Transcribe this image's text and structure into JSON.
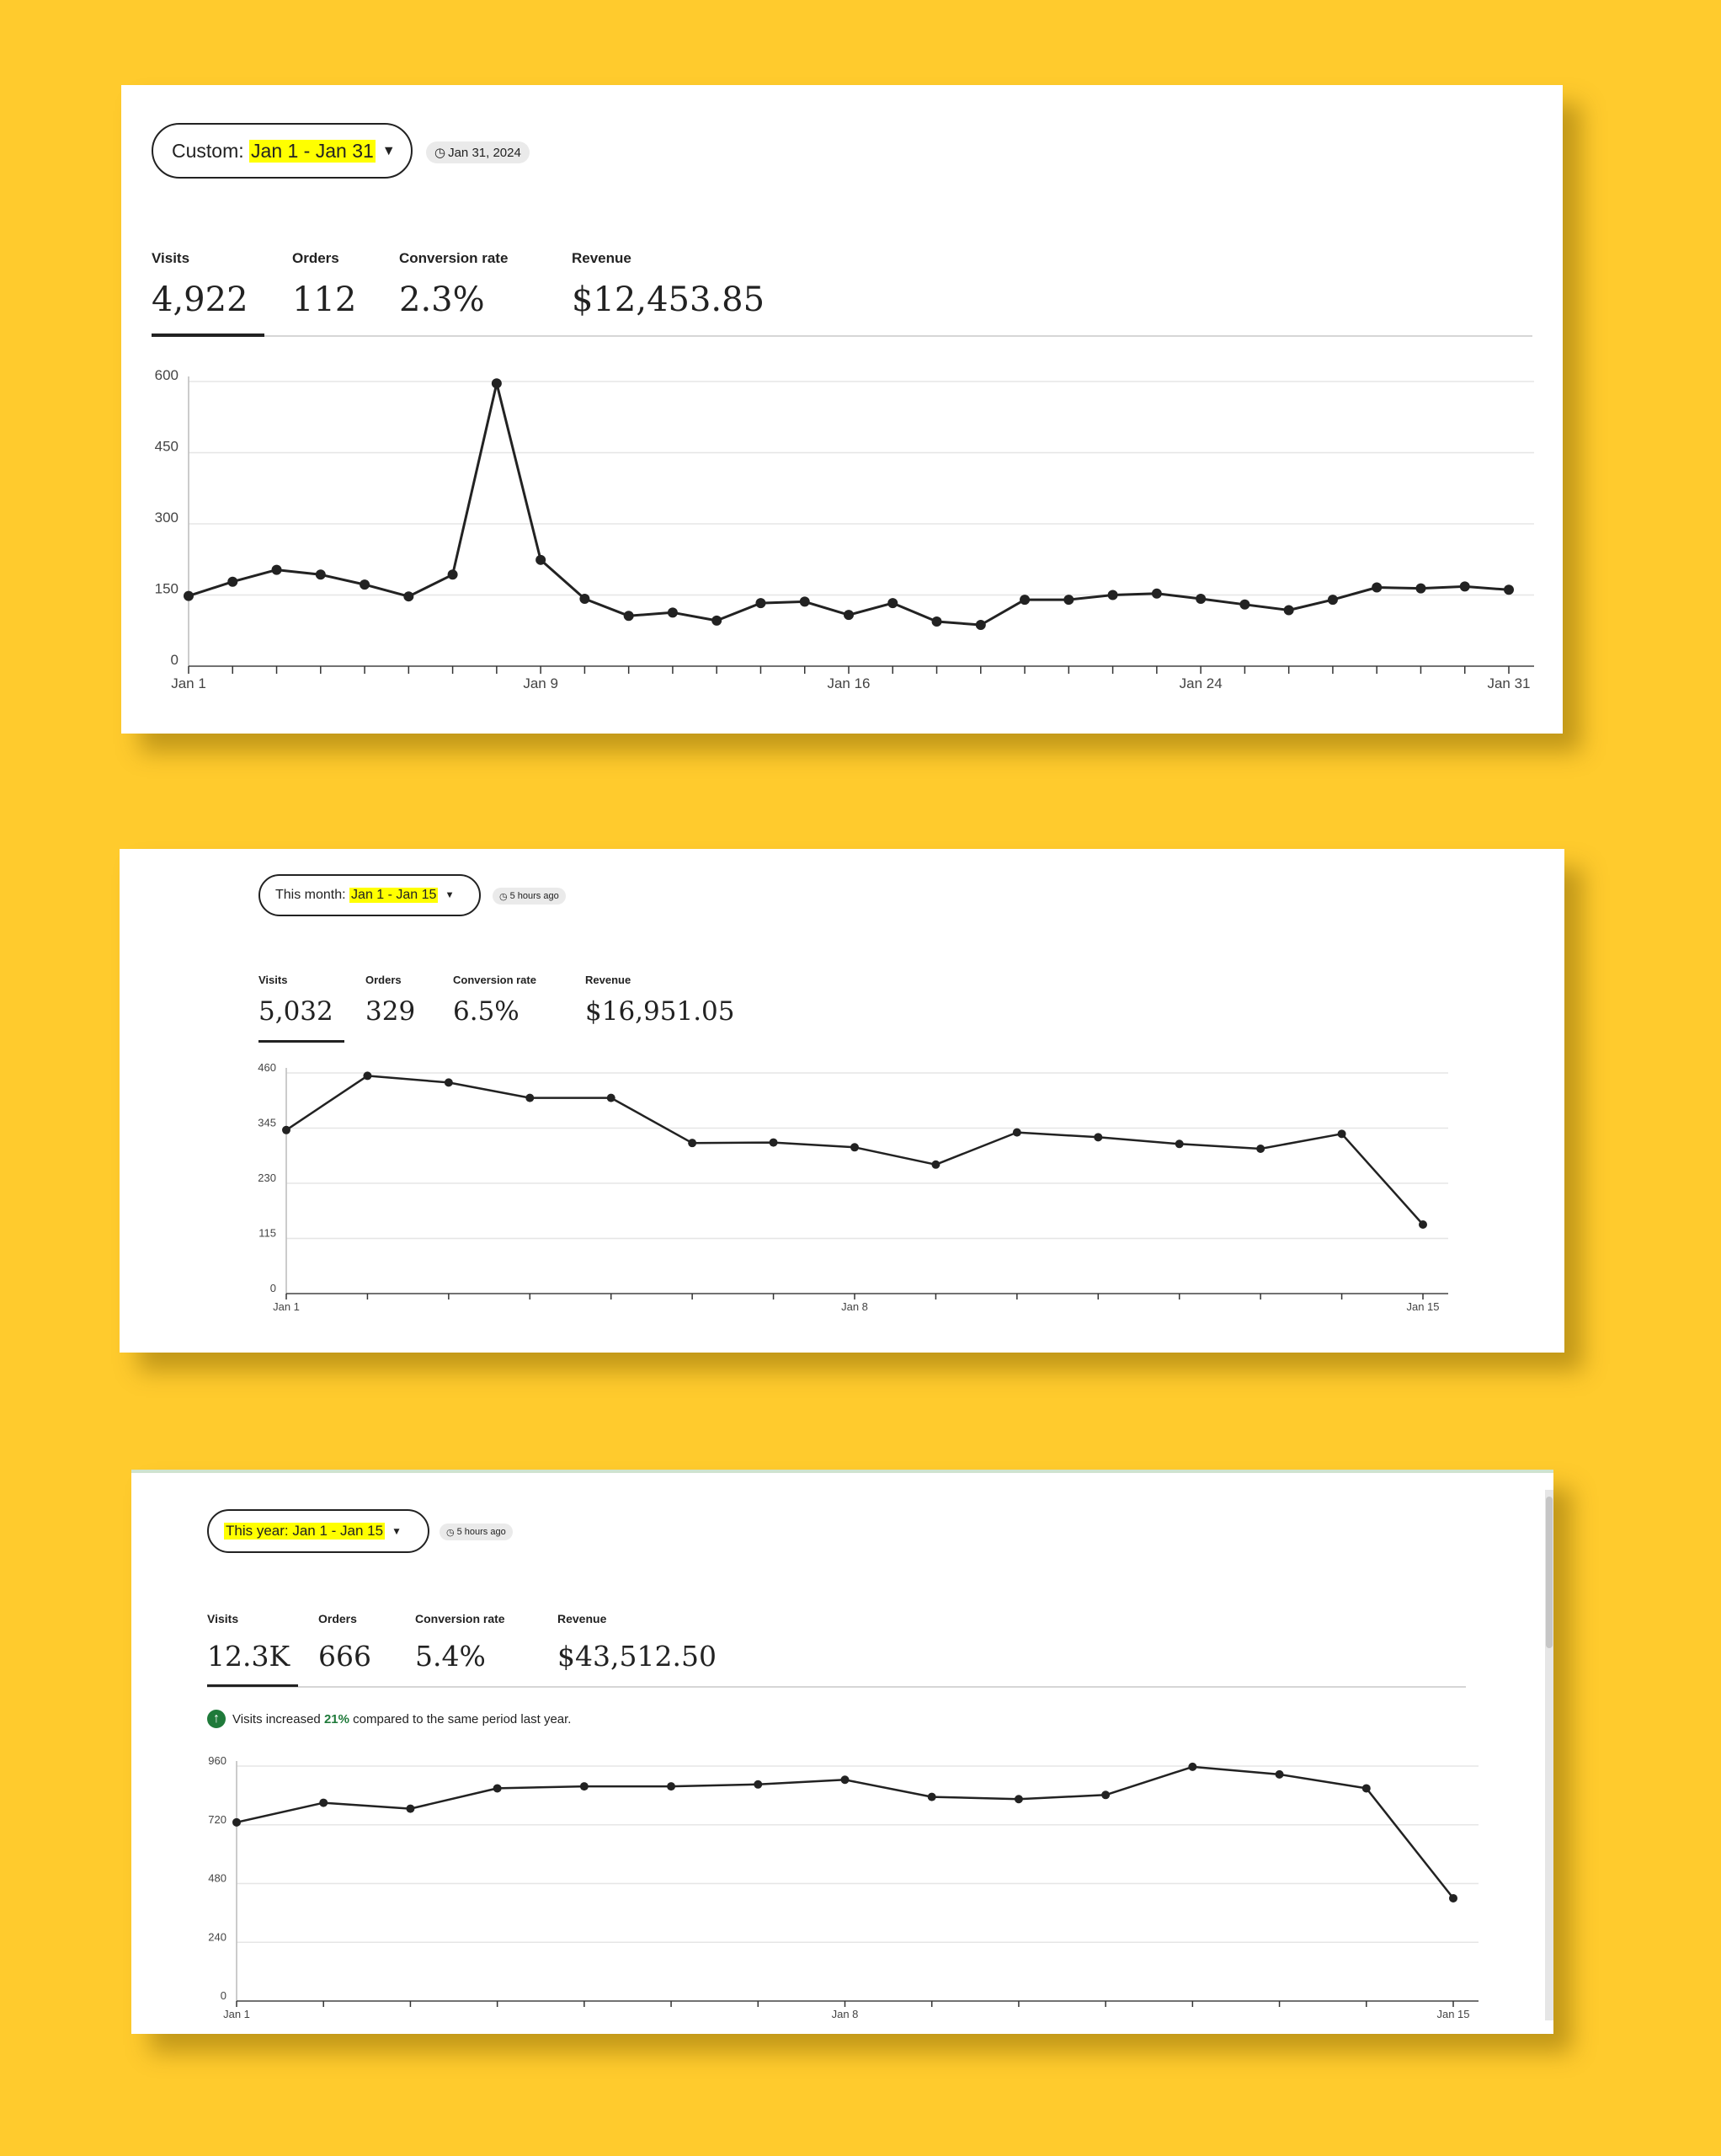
{
  "colors": {
    "background": "#FFCB2D",
    "highlight": "#ffff00",
    "line": "#222222",
    "positive": "#1f7a3a"
  },
  "panels": [
    {
      "date_filter": {
        "prefix": "Custom:",
        "range": "Jan 1 - Jan 31",
        "icon": "caret-down-icon"
      },
      "updated": {
        "icon": "clock-icon",
        "text": "Jan 31, 2024"
      },
      "stats": [
        {
          "label": "Visits",
          "value": "4,922"
        },
        {
          "label": "Orders",
          "value": "112"
        },
        {
          "label": "Conversion rate",
          "value": "2.3%"
        },
        {
          "label": "Revenue",
          "value": "$12,453.85"
        }
      ]
    },
    {
      "date_filter": {
        "prefix": "This month:",
        "range": "Jan 1 - Jan 15",
        "icon": "caret-down-icon"
      },
      "updated": {
        "icon": "clock-icon",
        "text": "5 hours ago"
      },
      "stats": [
        {
          "label": "Visits",
          "value": "5,032"
        },
        {
          "label": "Orders",
          "value": "329"
        },
        {
          "label": "Conversion rate",
          "value": "6.5%"
        },
        {
          "label": "Revenue",
          "value": "$16,951.05"
        }
      ]
    },
    {
      "date_filter": {
        "label": "This year: Jan 1 - Jan 15",
        "icon": "caret-down-icon"
      },
      "updated": {
        "icon": "clock-icon",
        "text": "5 hours ago"
      },
      "stats": [
        {
          "label": "Visits",
          "value": "12.3K"
        },
        {
          "label": "Orders",
          "value": "666"
        },
        {
          "label": "Conversion rate",
          "value": "5.4%"
        },
        {
          "label": "Revenue",
          "value": "$43,512.50"
        }
      ],
      "notice": {
        "icon": "arrow-up-icon",
        "before": "Visits increased",
        "pct": "21%",
        "after": "compared to the same period last year."
      }
    }
  ],
  "chart_data": [
    {
      "type": "line",
      "ylim": [
        0,
        600
      ],
      "yticks": [
        "0",
        "150",
        "300",
        "450",
        "600"
      ],
      "x_tick_labels": [
        {
          "index": 0,
          "label": "Jan 1"
        },
        {
          "index": 8,
          "label": "Jan 9"
        },
        {
          "index": 15,
          "label": "Jan 16"
        },
        {
          "index": 23,
          "label": "Jan 24"
        },
        {
          "index": 30,
          "label": "Jan 31"
        }
      ],
      "grid": true,
      "series": [
        {
          "values": [
            148,
            178,
            203,
            193,
            172,
            147,
            193,
            596,
            224,
            142,
            106,
            113,
            96,
            133,
            136,
            108,
            133,
            94,
            87,
            140,
            140,
            150,
            153,
            142,
            130,
            118,
            140,
            166,
            164,
            168,
            161
          ]
        }
      ]
    },
    {
      "type": "line",
      "ylim": [
        0,
        460
      ],
      "yticks": [
        "0",
        "115",
        "230",
        "345",
        "460"
      ],
      "x_tick_labels": [
        {
          "index": 0,
          "label": "Jan 1"
        },
        {
          "index": 7,
          "label": "Jan 8"
        },
        {
          "index": 14,
          "label": "Jan 15"
        }
      ],
      "grid": true,
      "series": [
        {
          "values": [
            341,
            454,
            440,
            408,
            408,
            314,
            315,
            305,
            269,
            336,
            326,
            312,
            302,
            333,
            144
          ]
        }
      ]
    },
    {
      "type": "line",
      "ylim": [
        0,
        960
      ],
      "yticks": [
        "0",
        "240",
        "480",
        "720",
        "960"
      ],
      "x_tick_labels": [
        {
          "index": 0,
          "label": "Jan 1"
        },
        {
          "index": 7,
          "label": "Jan 8"
        },
        {
          "index": 14,
          "label": "Jan 15"
        }
      ],
      "grid": true,
      "series": [
        {
          "values": [
            730,
            810,
            786,
            869,
            877,
            877,
            885,
            904,
            834,
            825,
            842,
            957,
            926,
            869,
            420
          ]
        }
      ]
    }
  ]
}
